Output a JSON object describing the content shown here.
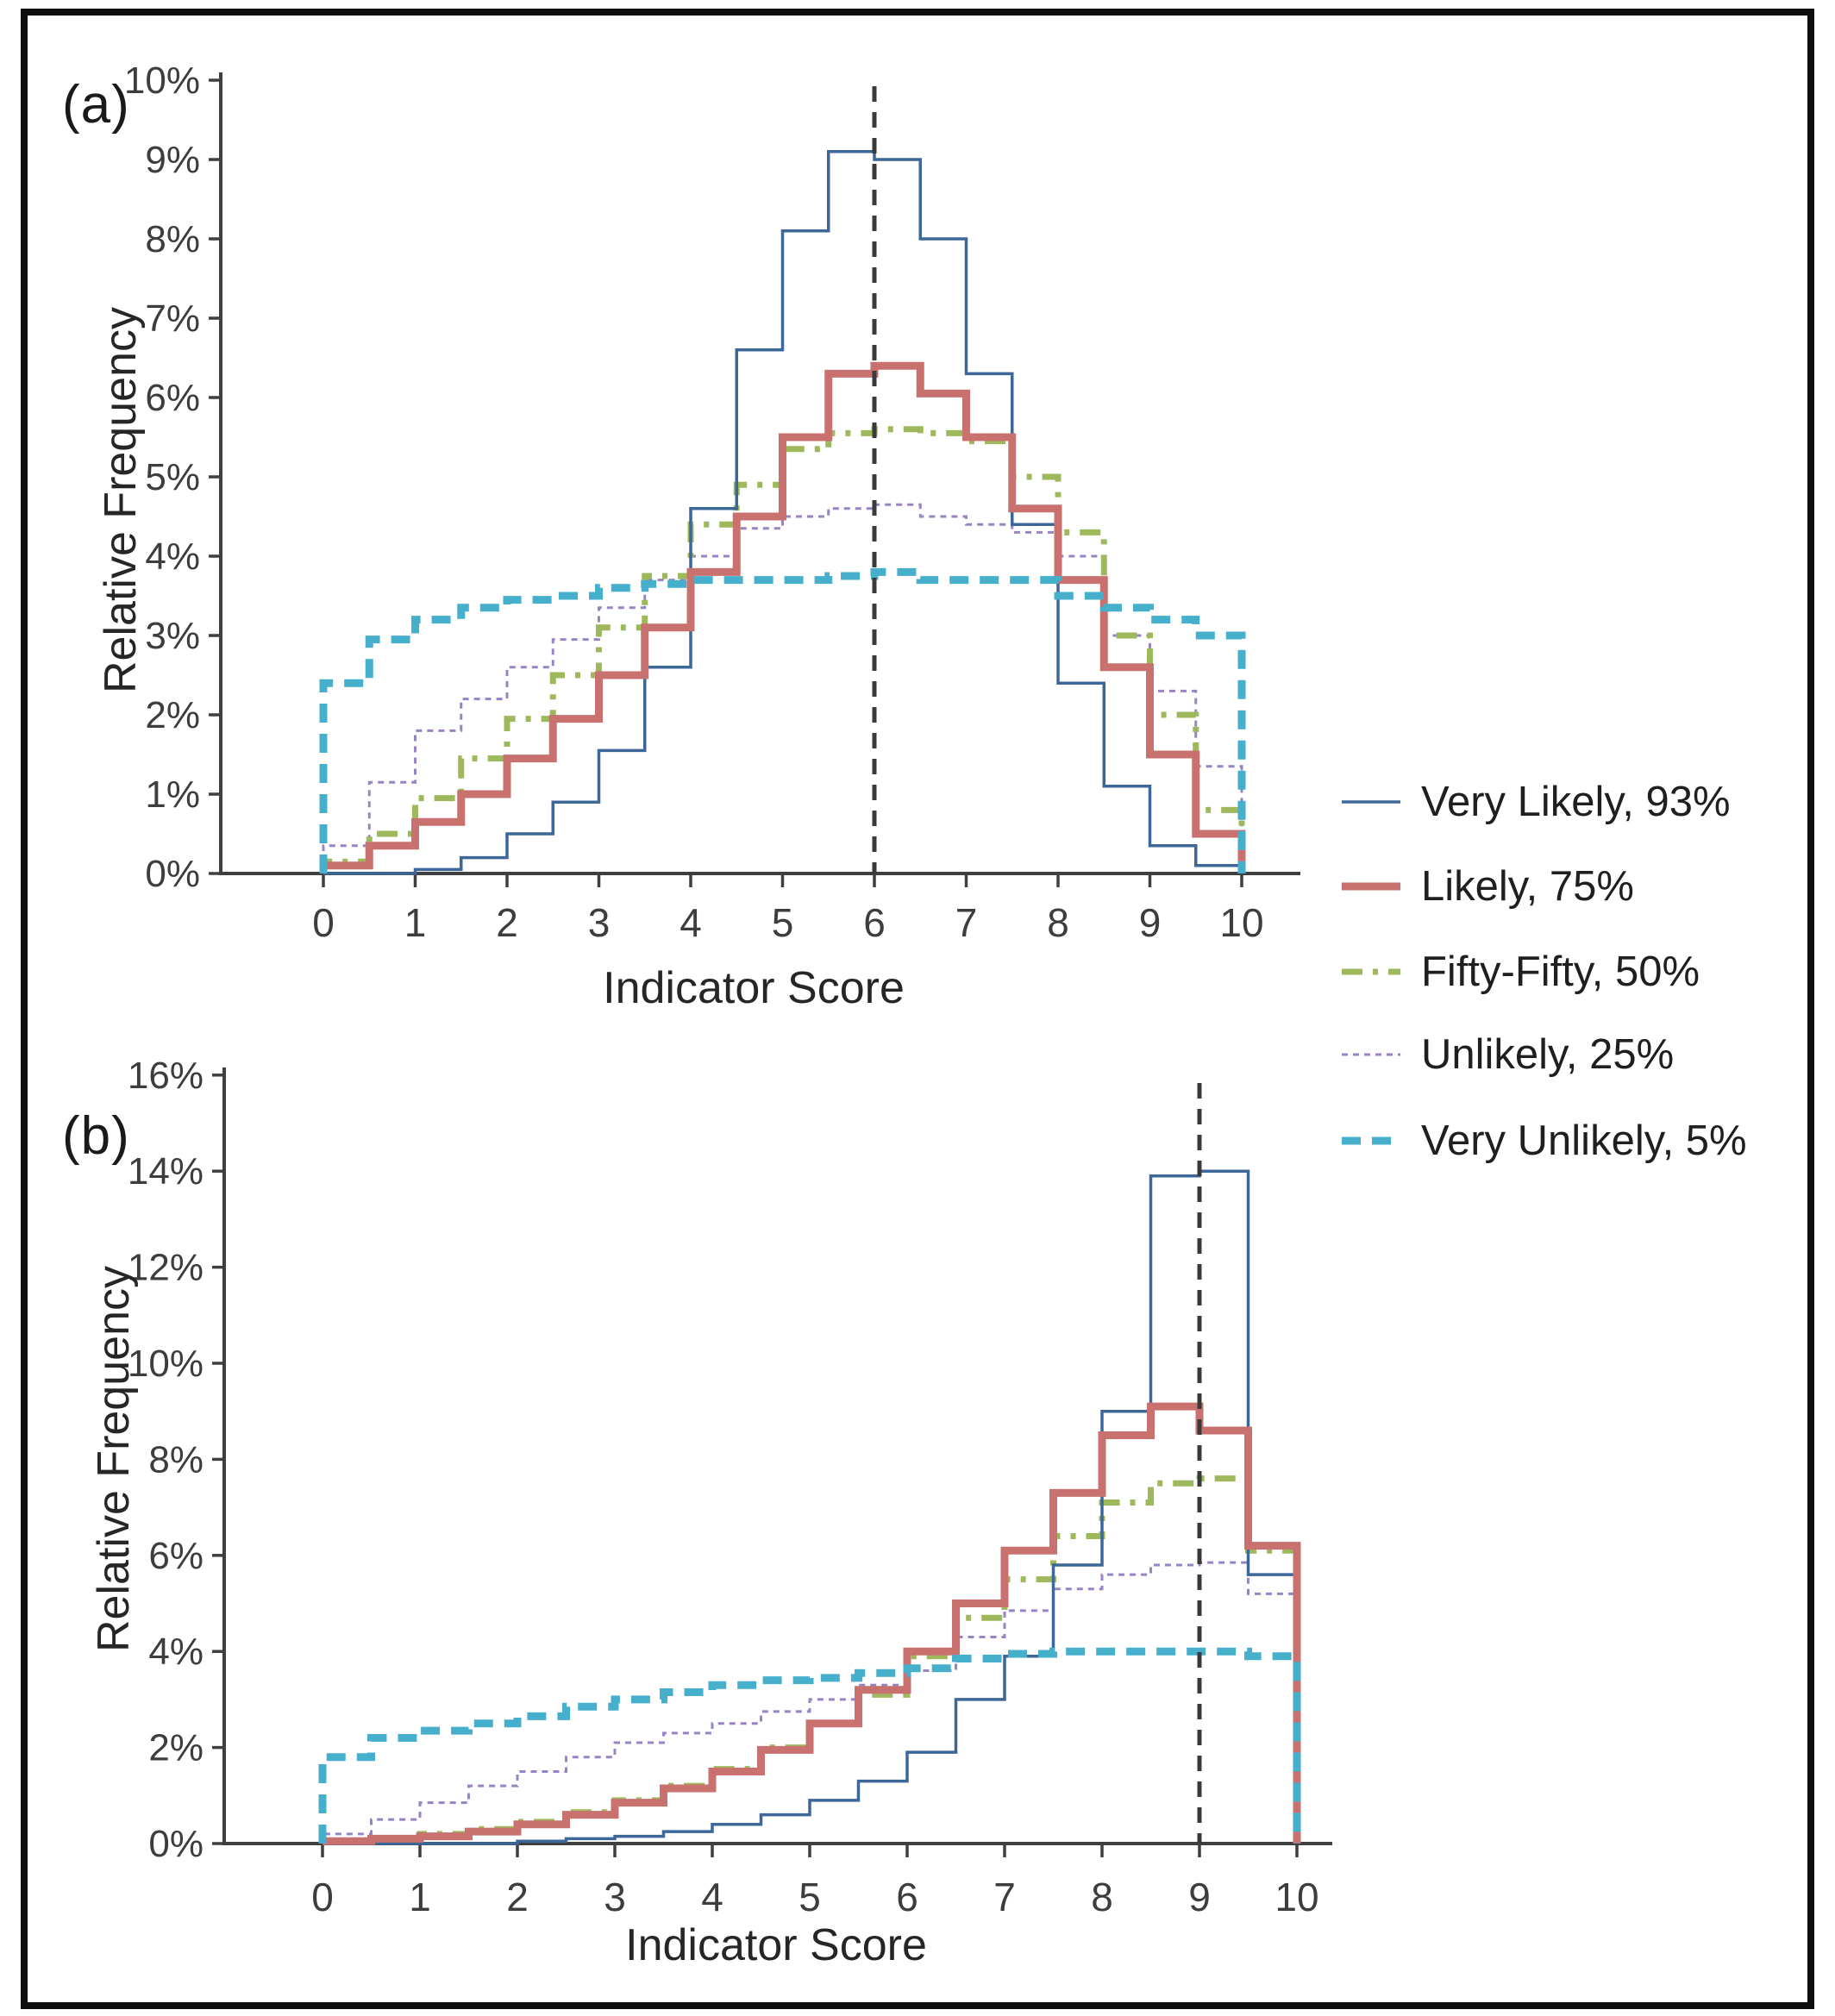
{
  "figure": {
    "background": "#ffffff",
    "border_color": "#0e0e0e"
  },
  "panels": [
    {
      "label": "(a)",
      "ylabel": "Relative Frequency",
      "xlabel": "Indicator Score",
      "yticks": [
        "0%",
        "1%",
        "2%",
        "3%",
        "4%",
        "5%",
        "6%",
        "7%",
        "8%",
        "9%",
        "10%"
      ],
      "xticks": [
        "0",
        "1",
        "2",
        "3",
        "4",
        "5",
        "6",
        "7",
        "8",
        "9",
        "10"
      ]
    },
    {
      "label": "(b)",
      "ylabel": "Relative Frequency",
      "xlabel": "Indicator Score",
      "yticks": [
        "0%",
        "2%",
        "4%",
        "6%",
        "8%",
        "10%",
        "12%",
        "14%",
        "16%"
      ],
      "xticks": [
        "0",
        "1",
        "2",
        "3",
        "4",
        "5",
        "6",
        "7",
        "8",
        "9",
        "10"
      ]
    }
  ],
  "legend": {
    "items": [
      {
        "label": "Very Likely, 93%",
        "color": "#3d6699",
        "dash": "solid",
        "width": 3.5
      },
      {
        "label": "Likely, 75%",
        "color": "#c8716e",
        "dash": "solid",
        "width": 9
      },
      {
        "label": "Fifty-Fifty, 50%",
        "color": "#9db95c",
        "dash": "dashdot",
        "width": 7
      },
      {
        "label": "Unlikely, 25%",
        "color": "#9883c5",
        "dash": "dotted",
        "width": 3
      },
      {
        "label": "Very Unlikely, 5%",
        "color": "#46afcb",
        "dash": "dashed",
        "width": 9
      }
    ]
  },
  "chart_data": [
    {
      "type": "step-histogram",
      "panel": "(a)",
      "bin_width": 0.5,
      "xlim": [
        0,
        10
      ],
      "ylim": [
        0,
        10
      ],
      "ytick_step": 1,
      "y_unit": "percent",
      "vline_x": 6,
      "grid": false,
      "legend_position": "right-of-plot",
      "series": [
        {
          "name": "Very Likely, 93%",
          "color": "#3d6699",
          "dash": "solid",
          "width": 3.5,
          "values": [
            0,
            0,
            0.05,
            0.2,
            0.5,
            0.9,
            1.55,
            2.6,
            4.6,
            6.6,
            8.1,
            9.1,
            9.0,
            8.0,
            6.3,
            4.4,
            2.4,
            1.1,
            0.35,
            0.1
          ]
        },
        {
          "name": "Likely, 75%",
          "color": "#c8716e",
          "dash": "solid",
          "width": 9,
          "values": [
            0.1,
            0.35,
            0.65,
            1.0,
            1.45,
            1.95,
            2.5,
            3.1,
            3.8,
            4.5,
            5.5,
            6.3,
            6.4,
            6.05,
            5.5,
            4.6,
            3.7,
            2.6,
            1.5,
            0.5
          ]
        },
        {
          "name": "Fifty-Fifty, 50%",
          "color": "#9db95c",
          "dash": "dashdot",
          "width": 7,
          "values": [
            0.15,
            0.5,
            0.95,
            1.45,
            1.95,
            2.5,
            3.1,
            3.75,
            4.4,
            4.9,
            5.35,
            5.55,
            5.6,
            5.55,
            5.45,
            5.0,
            4.3,
            3.0,
            2.0,
            0.8
          ]
        },
        {
          "name": "Unlikely, 25%",
          "color": "#9883c5",
          "dash": "dotted",
          "width": 3,
          "values": [
            0.35,
            1.15,
            1.8,
            2.2,
            2.6,
            2.95,
            3.35,
            3.7,
            4.0,
            4.35,
            4.5,
            4.6,
            4.65,
            4.5,
            4.4,
            4.3,
            4.0,
            3.0,
            2.3,
            1.35
          ]
        },
        {
          "name": "Very Unlikely, 5%",
          "color": "#46afcb",
          "dash": "dashed",
          "width": 9,
          "values": [
            2.4,
            2.95,
            3.2,
            3.35,
            3.45,
            3.5,
            3.6,
            3.65,
            3.7,
            3.7,
            3.7,
            3.75,
            3.8,
            3.7,
            3.7,
            3.7,
            3.5,
            3.35,
            3.2,
            3.0
          ]
        }
      ]
    },
    {
      "type": "step-histogram",
      "panel": "(b)",
      "bin_width": 0.5,
      "xlim": [
        0,
        10
      ],
      "ylim": [
        0,
        16
      ],
      "ytick_step": 2,
      "y_unit": "percent",
      "vline_x": 9,
      "grid": false,
      "legend_position": "shared",
      "series": [
        {
          "name": "Very Likely, 93%",
          "color": "#3d6699",
          "dash": "solid",
          "width": 3.5,
          "values": [
            0,
            0,
            0,
            0,
            0.05,
            0.1,
            0.15,
            0.25,
            0.4,
            0.6,
            0.9,
            1.3,
            1.9,
            3.0,
            3.9,
            5.8,
            9.0,
            13.9,
            14.0,
            5.6
          ]
        },
        {
          "name": "Likely, 75%",
          "color": "#c8716e",
          "dash": "solid",
          "width": 9,
          "values": [
            0.05,
            0.1,
            0.15,
            0.25,
            0.4,
            0.6,
            0.85,
            1.15,
            1.5,
            1.95,
            2.5,
            3.2,
            4.0,
            5.0,
            6.1,
            7.3,
            8.5,
            9.1,
            8.6,
            6.2
          ]
        },
        {
          "name": "Fifty-Fifty, 50%",
          "color": "#9db95c",
          "dash": "dashdot",
          "width": 7,
          "values": [
            0.05,
            0.1,
            0.2,
            0.3,
            0.45,
            0.65,
            0.9,
            1.2,
            1.55,
            2.0,
            2.5,
            3.1,
            3.9,
            4.7,
            5.5,
            6.4,
            7.1,
            7.5,
            7.6,
            6.1
          ]
        },
        {
          "name": "Unlikely, 25%",
          "color": "#9883c5",
          "dash": "dotted",
          "width": 3,
          "values": [
            0.2,
            0.5,
            0.85,
            1.2,
            1.5,
            1.8,
            2.1,
            2.3,
            2.5,
            2.75,
            3.0,
            3.3,
            3.6,
            4.3,
            4.85,
            5.3,
            5.6,
            5.8,
            5.85,
            5.2
          ]
        },
        {
          "name": "Very Unlikely, 5%",
          "color": "#46afcb",
          "dash": "dashed",
          "width": 9,
          "values": [
            1.8,
            2.2,
            2.35,
            2.5,
            2.65,
            2.85,
            3.0,
            3.15,
            3.3,
            3.4,
            3.45,
            3.55,
            3.65,
            3.85,
            3.95,
            4.0,
            4.0,
            4.0,
            4.0,
            3.9
          ]
        }
      ]
    }
  ],
  "reference_line": {
    "color": "#3a3a3a",
    "style": "dashed"
  },
  "axis": {
    "color": "#3f3f3f",
    "tick_label_color": "#3d3d3d"
  }
}
